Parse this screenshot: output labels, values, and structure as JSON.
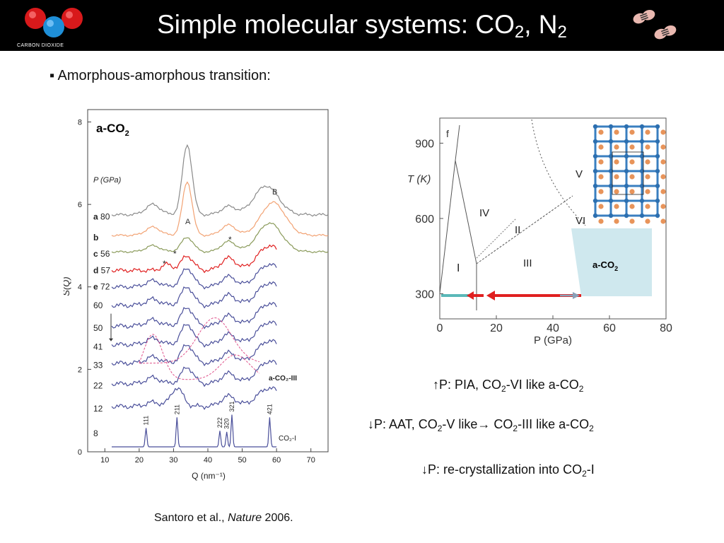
{
  "title": {
    "main": "Simple molecular systems: CO",
    "sub1": "2",
    "mid": ", N",
    "sub2": "2"
  },
  "logo": {
    "label": "CARBON DIOXIDE"
  },
  "bullet": "▪ Amorphous-amorphous transition:",
  "left_figure": {
    "sample_label": "a-CO",
    "sample_sub": "2",
    "pressure_header": "P (GPa)",
    "y_axis_label": "S(Q)",
    "x_axis_label": "Q (nm⁻¹)",
    "x_ticks": [
      "10",
      "20",
      "30",
      "40",
      "50",
      "60",
      "70"
    ],
    "y_ticks": [
      "0",
      "2",
      "4",
      "6",
      "8"
    ],
    "curve_labels": [
      {
        "tag": "a",
        "value": "80"
      },
      {
        "tag": "b",
        "value": ""
      },
      {
        "tag": "c",
        "value": "56"
      },
      {
        "tag": "d",
        "value": "57"
      },
      {
        "tag": "e",
        "value": "72"
      },
      {
        "tag": "",
        "value": "60"
      },
      {
        "tag": "",
        "value": "50"
      },
      {
        "tag": "",
        "value": "41"
      },
      {
        "tag": "",
        "value": "33"
      },
      {
        "tag": "",
        "value": "22"
      },
      {
        "tag": "",
        "value": "12"
      },
      {
        "tag": "",
        "value": "8"
      }
    ],
    "peak_labels": {
      "A": "A",
      "B": "B"
    },
    "phase_iii_label": "a-CO₂-III",
    "phase_i_label": "CO₂-I",
    "bragg_peaks": [
      "111",
      "211",
      "222",
      "320",
      "321",
      "421"
    ],
    "star": "*"
  },
  "phase_diagram": {
    "y_axis_label": "T (K)",
    "x_axis_label": "P (GPa)",
    "x_ticks": [
      "0",
      "20",
      "40",
      "60",
      "80"
    ],
    "y_ticks": [
      "300",
      "600",
      "900"
    ],
    "regions": [
      "f",
      "I",
      "II",
      "III",
      "IV",
      "V",
      "VI"
    ],
    "amorphous_label": "a-CO",
    "amorphous_sub": "2"
  },
  "notes": [
    {
      "arrow": "↑",
      "parts": [
        "P: PIA, CO",
        "2",
        "-VI like a-CO",
        "2"
      ]
    },
    {
      "arrow": "↓",
      "parts": [
        "P: AAT, CO",
        "2",
        "-V like→ CO",
        "2",
        "-III like a-CO",
        "2"
      ]
    },
    {
      "arrow": "↓",
      "parts": [
        "P: re-crystallization into CO",
        "2",
        "-I"
      ]
    }
  ],
  "citation": {
    "authors": "Santoro et al., ",
    "journal": "Nature",
    "year": " 2006."
  },
  "colors": {
    "titlebar": "#000000",
    "bright_red": "#e02020",
    "dark_red": "#cc0000",
    "teal": "#5ab8b8",
    "amorphous_fill": "#cfe8ee",
    "blue_curve": "#4a4f9a",
    "orange_curve": "#f2a273",
    "green_curve": "#8a9a5a",
    "grey_curve": "#8a8a8a"
  }
}
